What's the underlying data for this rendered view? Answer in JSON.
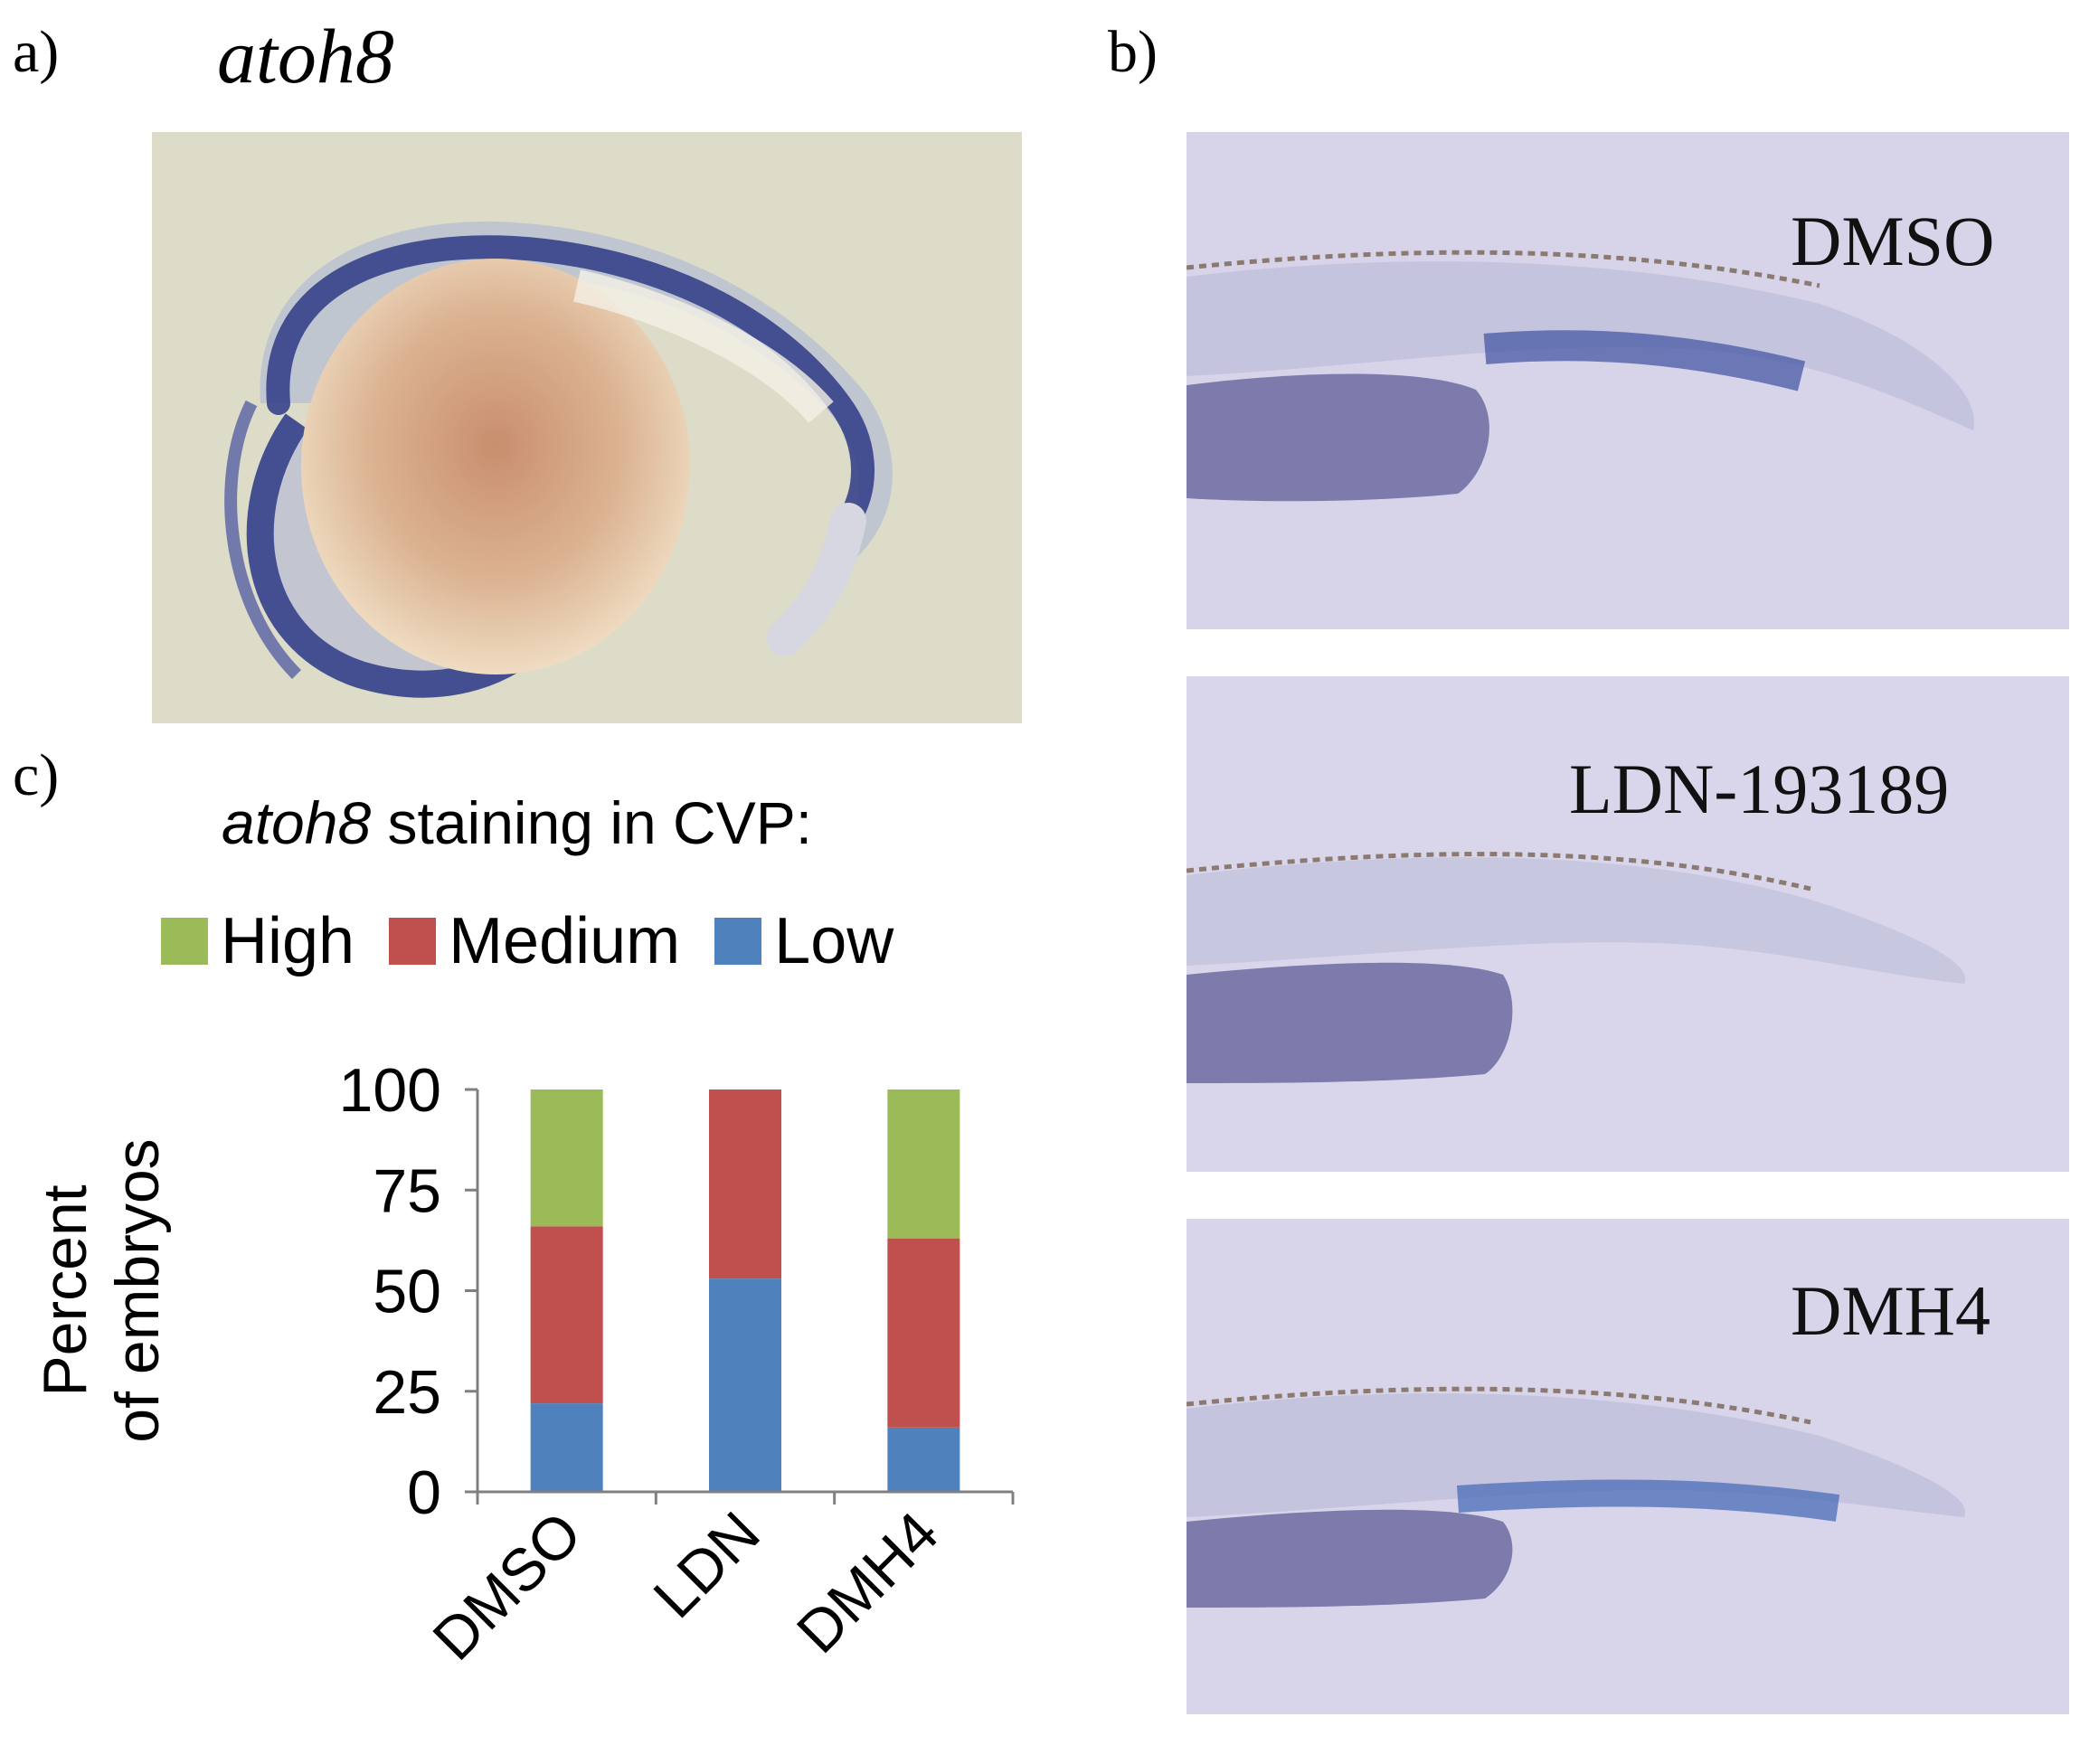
{
  "panels": {
    "a": {
      "label": "a)",
      "title": "atoh8",
      "image_alt": "whole zebrafish embryo in-situ photo"
    },
    "b": {
      "label": "b)",
      "images": [
        {
          "label": "DMSO"
        },
        {
          "label": "LDN-193189"
        },
        {
          "label": "DMH4"
        }
      ]
    },
    "c": {
      "label": "c)",
      "heading_italic": "atoh8",
      "heading_rest": " staining in CVP:"
    }
  },
  "colors": {
    "high": "#9bbb59",
    "medium": "#c0504d",
    "low": "#4f81bd"
  },
  "chart_data": {
    "type": "bar",
    "stacked": true,
    "categories": [
      "DMSO",
      "LDN",
      "DMH4"
    ],
    "series": [
      {
        "name": "Low",
        "values": [
          22,
          53,
          16
        ],
        "color": "#4f81bd"
      },
      {
        "name": "Medium",
        "values": [
          44,
          47,
          47
        ],
        "color": "#c0504d"
      },
      {
        "name": "High",
        "values": [
          34,
          0,
          37
        ],
        "color": "#9bbb59"
      }
    ],
    "legend_order": [
      "High",
      "Medium",
      "Low"
    ],
    "ylabel_line1": "Percent",
    "ylabel_line2": "of embryos",
    "yticks": [
      0,
      25,
      50,
      75,
      100
    ],
    "ylim": [
      0,
      100
    ],
    "grid": false
  }
}
